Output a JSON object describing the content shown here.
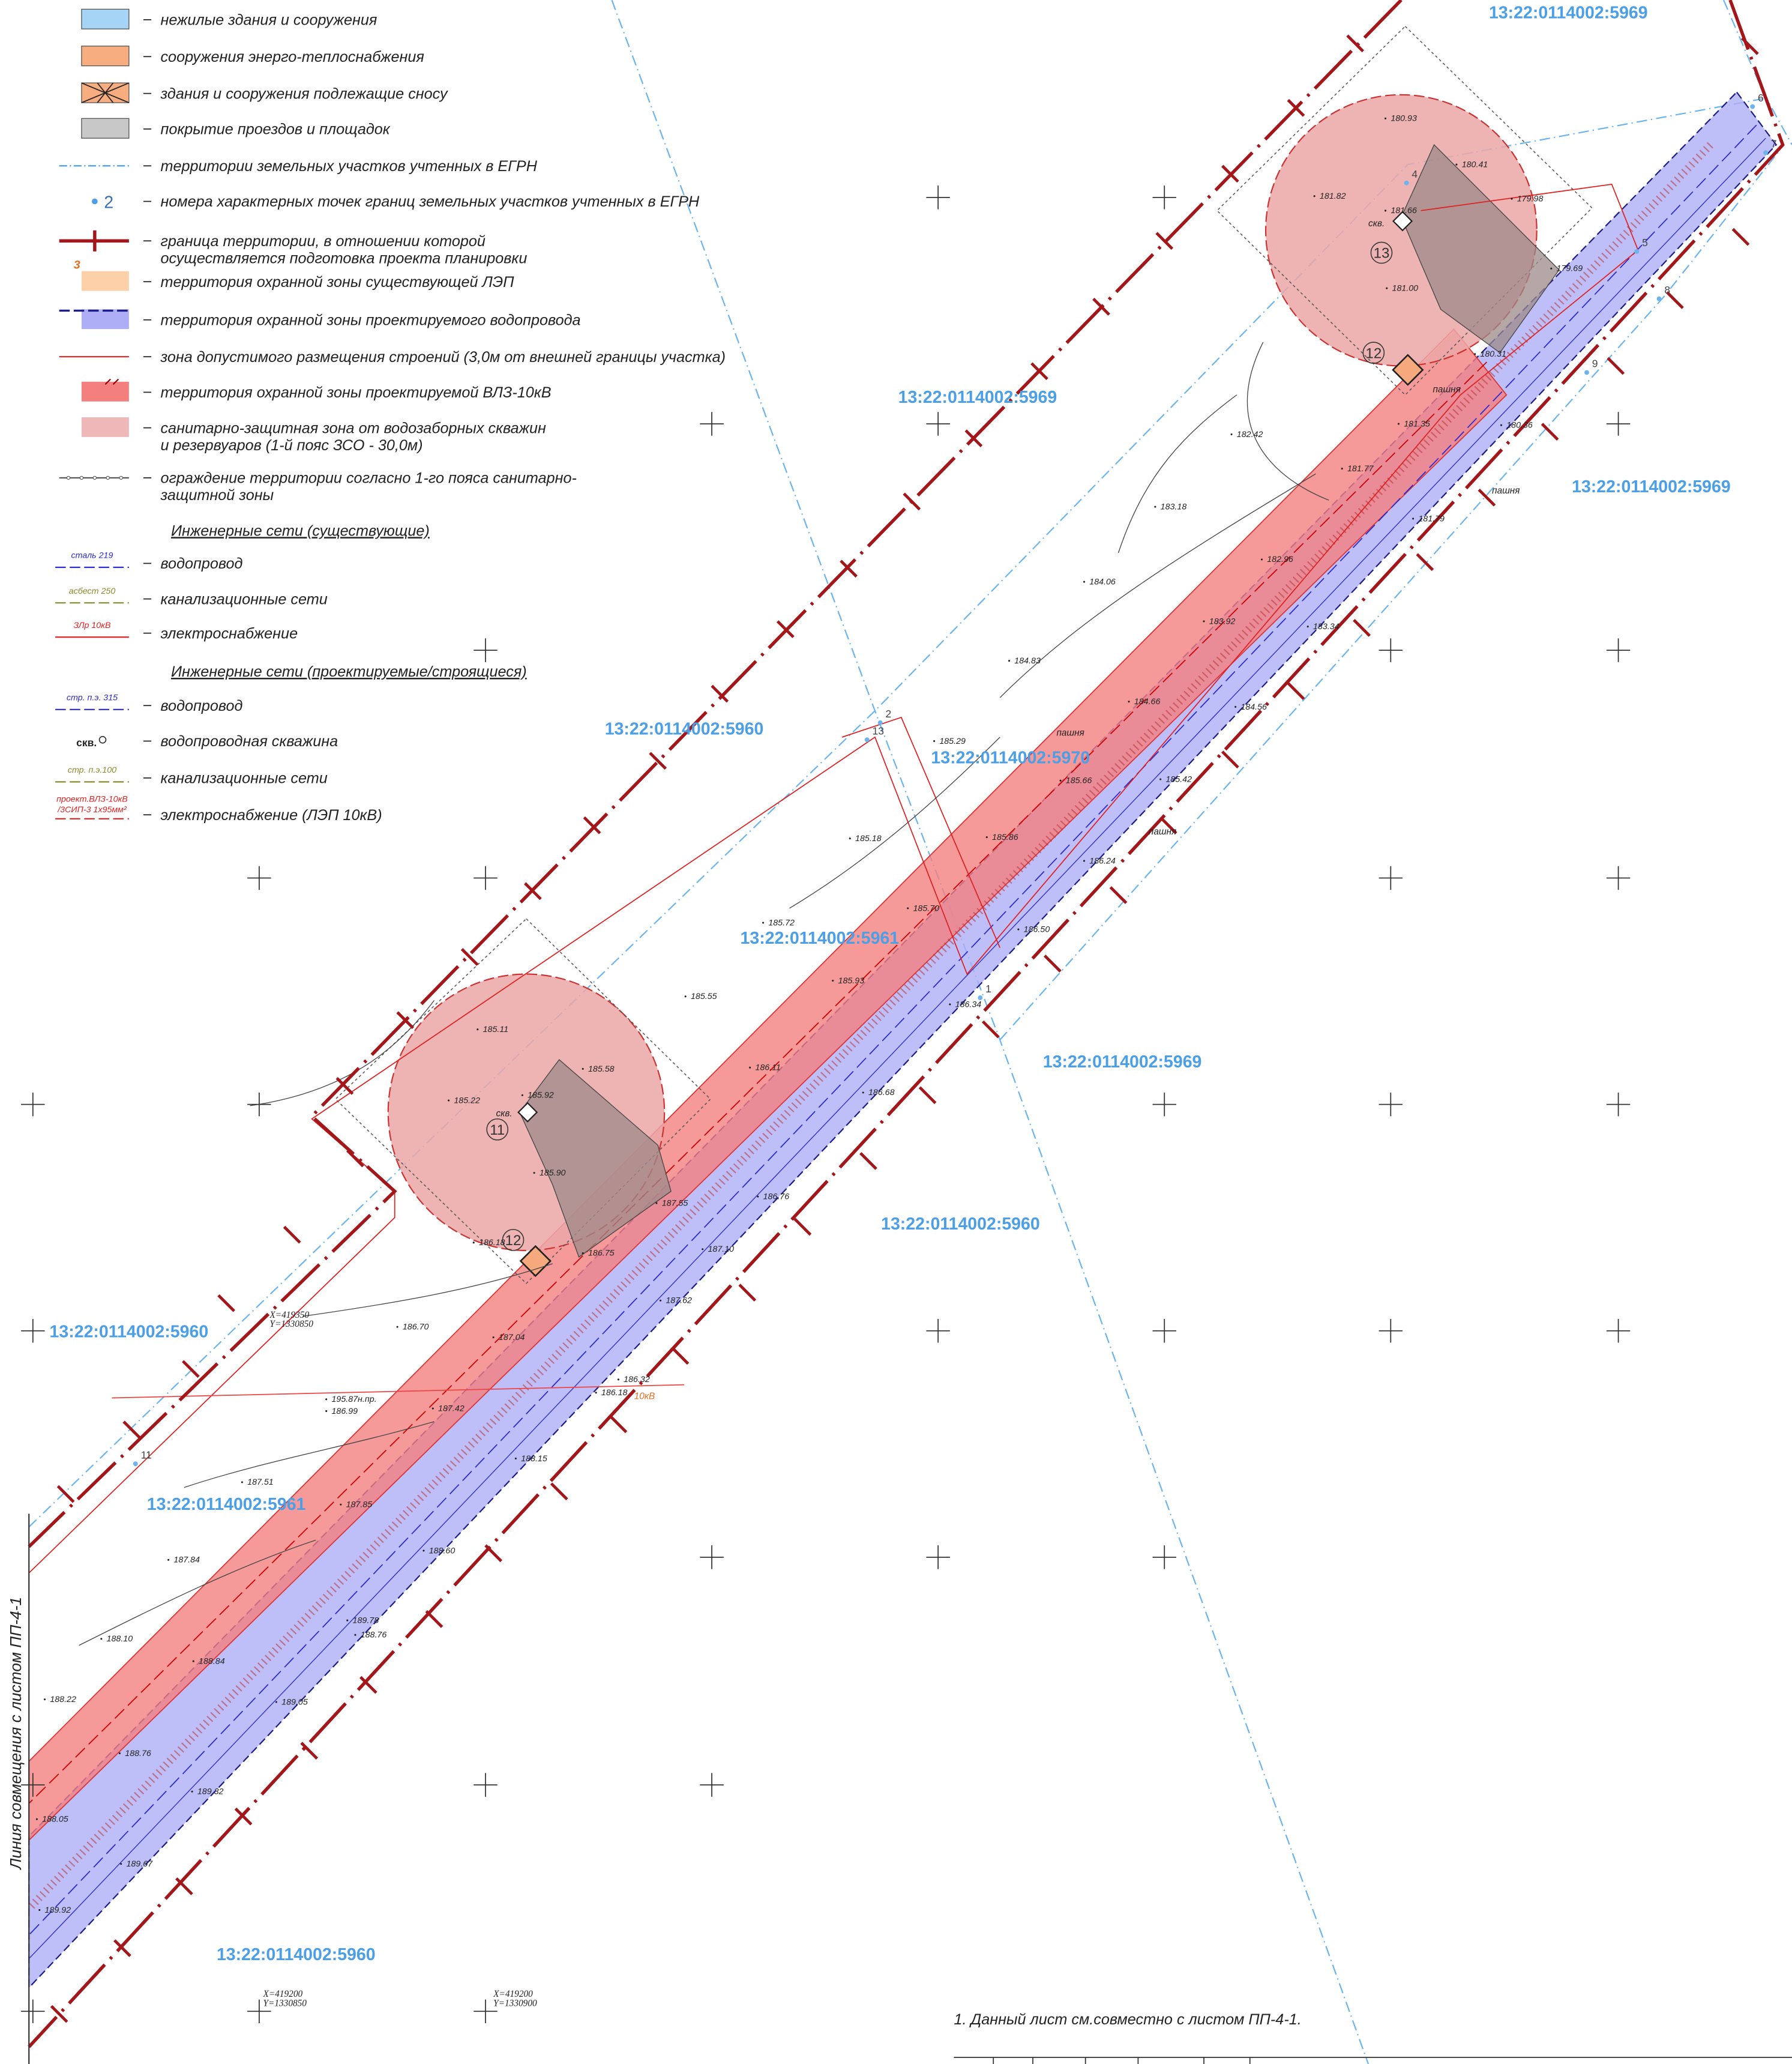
{
  "legend": {
    "items": [
      {
        "label": [
          "нежилые здания и сооружения"
        ]
      },
      {
        "label": [
          "сооружения энерго-теплоснабжения"
        ]
      },
      {
        "label": [
          "здания и сооружения подлежащие сносу"
        ]
      },
      {
        "label": [
          "покрытие проездов и площадок"
        ]
      },
      {
        "label": [
          "территории земельных участков учтенных в ЕГРН"
        ]
      },
      {
        "symbol": [
          "2"
        ],
        "label": [
          "номера характерных точек границ земельных участков учтенных в ЕГРН"
        ]
      },
      {
        "label": [
          "граница территории, в отношении которой",
          "осуществляется подготовка проекта планировки"
        ]
      },
      {
        "symbol": [
          "3"
        ],
        "label": [
          "территория охранной зоны существующей ЛЭП"
        ]
      },
      {
        "label": [
          "территория охранной зоны проектируемого водопровода"
        ]
      },
      {
        "label": [
          "зона допустимого размещения строений (3,0м от внешней границы участка)"
        ]
      },
      {
        "label": [
          "территория охранной зоны проектируемой ВЛЗ-10кВ"
        ]
      },
      {
        "label": [
          "санитарно-защитная зона от водозаборных скважин",
          "и резервуаров (1-й пояс ЗСО - 30,0м)"
        ]
      },
      {
        "label": [
          "ограждение территории согласно 1-го пояса санитарно-",
          "защитной зоны"
        ]
      },
      {
        "symbol": [
          "сталь 219"
        ],
        "label": [
          "водопровод"
        ]
      },
      {
        "symbol": [
          "асбест 250"
        ],
        "label": [
          "канализационные сети"
        ]
      },
      {
        "symbol": [
          "ЗЛр 10кВ"
        ],
        "label": [
          "электроснабжение"
        ]
      },
      {
        "symbol": [
          "стр. п.э. 315"
        ],
        "label": [
          "водопровод"
        ]
      },
      {
        "symbol": [
          "скв."
        ],
        "label": [
          "водопроводная скважина"
        ]
      },
      {
        "symbol": [
          "стр. п.э.100"
        ],
        "label": [
          "канализационные сети"
        ]
      },
      {
        "symbol": [
          "проект.ВЛЗ-10кВ",
          "/3СИП-3 1х95мм²"
        ],
        "label": [
          "электроснабжение (ЛЭП 10кВ)"
        ]
      }
    ],
    "existing_title": "Инженерные сети (существующие)",
    "projected_title": "Инженерные сети (проектируемые/строящиеся)"
  },
  "parcels": [
    "13:22:0114002:5969",
    "13:22:0114002:5969",
    "13:22:0114002:5969",
    "13:22:0114002:5969",
    "13:22:0114002:5960",
    "13:22:0114002:5960",
    "13:22:0114002:5960",
    "13:22:0114002:5960",
    "13:22:0114002:5970",
    "13:22:0114002:5961",
    "13:22:0114002:5961"
  ],
  "elevations": [
    "180.93",
    "180.41",
    "179.98",
    "181.82",
    "181.66",
    "181.00",
    "179.69",
    "180.31",
    "180.36",
    "181.35",
    "182.42",
    "181.77",
    "183.18",
    "181.79",
    "182.96",
    "184.06",
    "183.92",
    "183.34",
    "184.83",
    "184.66",
    "184.56",
    "185.29",
    "185.66",
    "185.42",
    "185.18",
    "185.86",
    "186.24",
    "185.70",
    "185.72",
    "186.50",
    "185.93",
    "185.55",
    "186.34",
    "185.11",
    "186.11",
    "185.58",
    "185.22",
    "185.92",
    "186.68",
    "185.90",
    "186.76",
    "187.55",
    "186.18",
    "186.75",
    "187.10",
    "187.62",
    "186.70",
    "187.04",
    "186.32",
    "186.18",
    "195.87н.пр.",
    "186.99",
    "187.42",
    "188.15",
    "187.51",
    "187.85",
    "188.60",
    "187.84",
    "188.10",
    "189.78",
    "188.76",
    "188.84",
    "188.22",
    "189.05",
    "188.76",
    "189.32",
    "188.05",
    "189.67",
    "189.92"
  ],
  "point_numbers": [
    "2",
    "13",
    "1",
    "11",
    "4",
    "5",
    "6",
    "7",
    "8",
    "9"
  ],
  "zone_numbers": [
    "13",
    "12",
    "11",
    "12"
  ],
  "map_labels": [
    "скв.",
    "скв.",
    "пашня",
    "пашня",
    "пашня",
    "пашня",
    "10кВ"
  ],
  "coordinates": [
    [
      "X=419350",
      "Y=1330850"
    ],
    [
      "X=419200",
      "Y=1330850"
    ],
    [
      "X=419200",
      "Y=1330900"
    ]
  ],
  "match_line": "Линия совмещения с листом ПП-4-1",
  "note": "1. Данный лист см.совместно с листом ПП-4-1."
}
